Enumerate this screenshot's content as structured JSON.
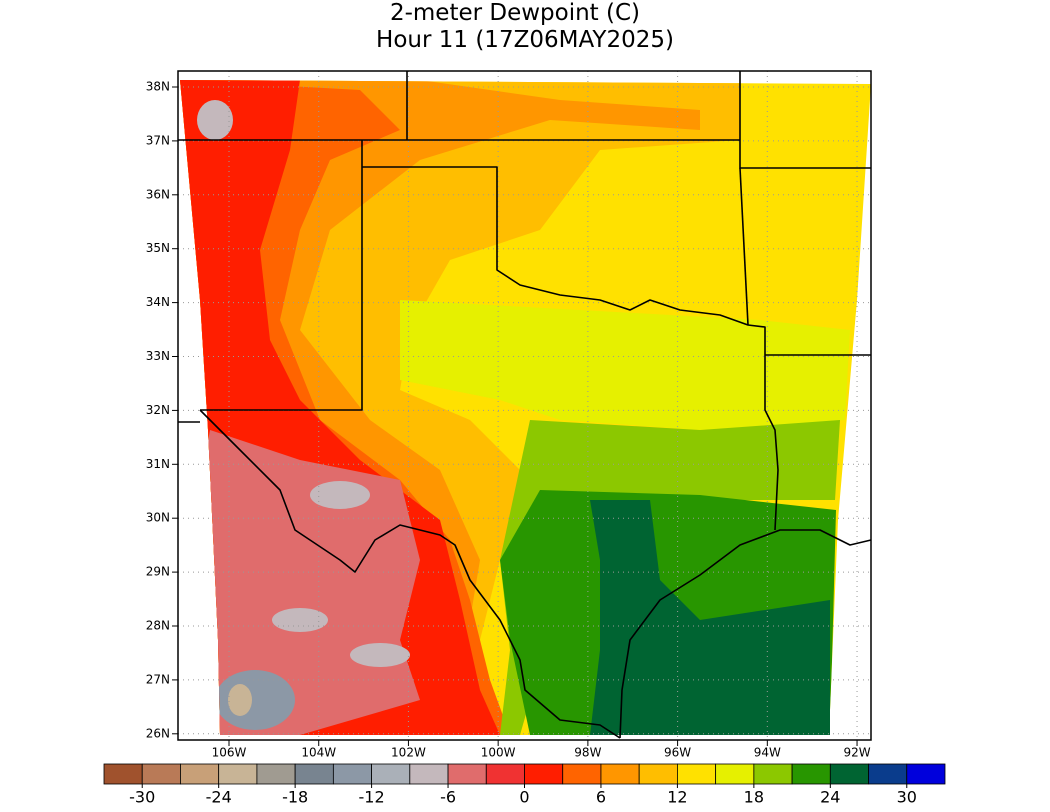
{
  "title": "2-meter Dewpoint (C)",
  "subtitle": "Hour 11 (17Z06MAY2025)",
  "map": {
    "lat_ticks": [
      {
        "value": 38,
        "label": "38N"
      },
      {
        "value": 37,
        "label": "37N"
      },
      {
        "value": 36,
        "label": "36N"
      },
      {
        "value": 35,
        "label": "35N"
      },
      {
        "value": 34,
        "label": "34N"
      },
      {
        "value": 33,
        "label": "33N"
      },
      {
        "value": 32,
        "label": "32N"
      },
      {
        "value": 31,
        "label": "31N"
      },
      {
        "value": 30,
        "label": "30N"
      },
      {
        "value": 29,
        "label": "29N"
      },
      {
        "value": 28,
        "label": "28N"
      },
      {
        "value": 27,
        "label": "27N"
      },
      {
        "value": 26,
        "label": "26N"
      }
    ],
    "lon_ticks": [
      {
        "value": -106,
        "label": "106W"
      },
      {
        "value": -104,
        "label": "104W"
      },
      {
        "value": -102,
        "label": "102W"
      },
      {
        "value": -100,
        "label": "100W"
      },
      {
        "value": -98,
        "label": "98W"
      },
      {
        "value": -96,
        "label": "96W"
      },
      {
        "value": -94,
        "label": "94W"
      },
      {
        "value": -92,
        "label": "92W"
      }
    ]
  },
  "colorbar": {
    "range": [
      -33,
      33
    ],
    "ticks": [
      -30,
      -24,
      -18,
      -12,
      -6,
      0,
      6,
      12,
      18,
      24,
      30
    ],
    "colors": [
      "#a0522d",
      "#b97a57",
      "#c8a078",
      "#c8b496",
      "#a09b91",
      "#788490",
      "#8c98a6",
      "#aab0b8",
      "#c4b8bc",
      "#e06c6c",
      "#f03232",
      "#ff1e00",
      "#ff6400",
      "#ff9600",
      "#ffbe00",
      "#ffe100",
      "#e6f000",
      "#8cc800",
      "#289600",
      "#006432",
      "#0a3c8c",
      "#0000dc"
    ]
  }
}
